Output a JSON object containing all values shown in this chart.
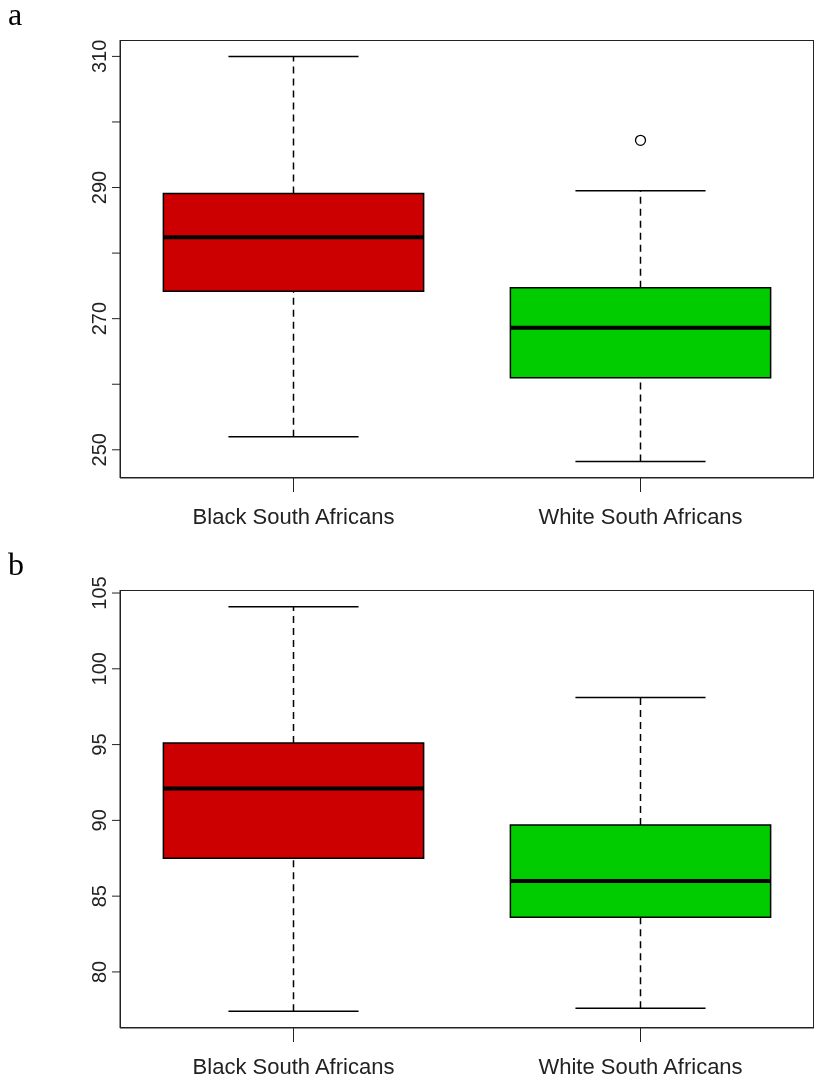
{
  "chart_data": [
    {
      "type": "box",
      "annotations": [
        "a"
      ],
      "categories": [
        "Black South Africans",
        "White South Africans"
      ],
      "colors": [
        "#cc0000",
        "#00cc00"
      ],
      "boxes": [
        {
          "low": 252.0,
          "q1": 274.2,
          "median": 282.4,
          "q3": 289.1,
          "high": 310.0
        },
        {
          "low": 248.2,
          "q1": 261.0,
          "median": 268.6,
          "q3": 274.7,
          "high": 289.5,
          "outliers": [
            297.2
          ]
        }
      ],
      "ylim": [
        245.7,
        312.5
      ],
      "yticks": [
        250,
        {
          "value": 260,
          "label": null
        },
        270,
        {
          "value": 280,
          "label": null
        },
        290,
        {
          "value": 300,
          "label": null
        },
        310
      ]
    },
    {
      "type": "box",
      "annotations": [
        "b"
      ],
      "categories": [
        "Black South Africans",
        "White South Africans"
      ],
      "colors": [
        "#cc0000",
        "#00cc00"
      ],
      "boxes": [
        {
          "low": 77.4,
          "q1": 87.5,
          "median": 92.1,
          "q3": 95.1,
          "high": 104.1
        },
        {
          "low": 77.6,
          "q1": 83.6,
          "median": 86.0,
          "q3": 89.7,
          "high": 98.1
        }
      ],
      "ylim": [
        76.3,
        105.2
      ],
      "yticks": [
        80,
        85,
        90,
        95,
        100,
        105
      ]
    }
  ]
}
